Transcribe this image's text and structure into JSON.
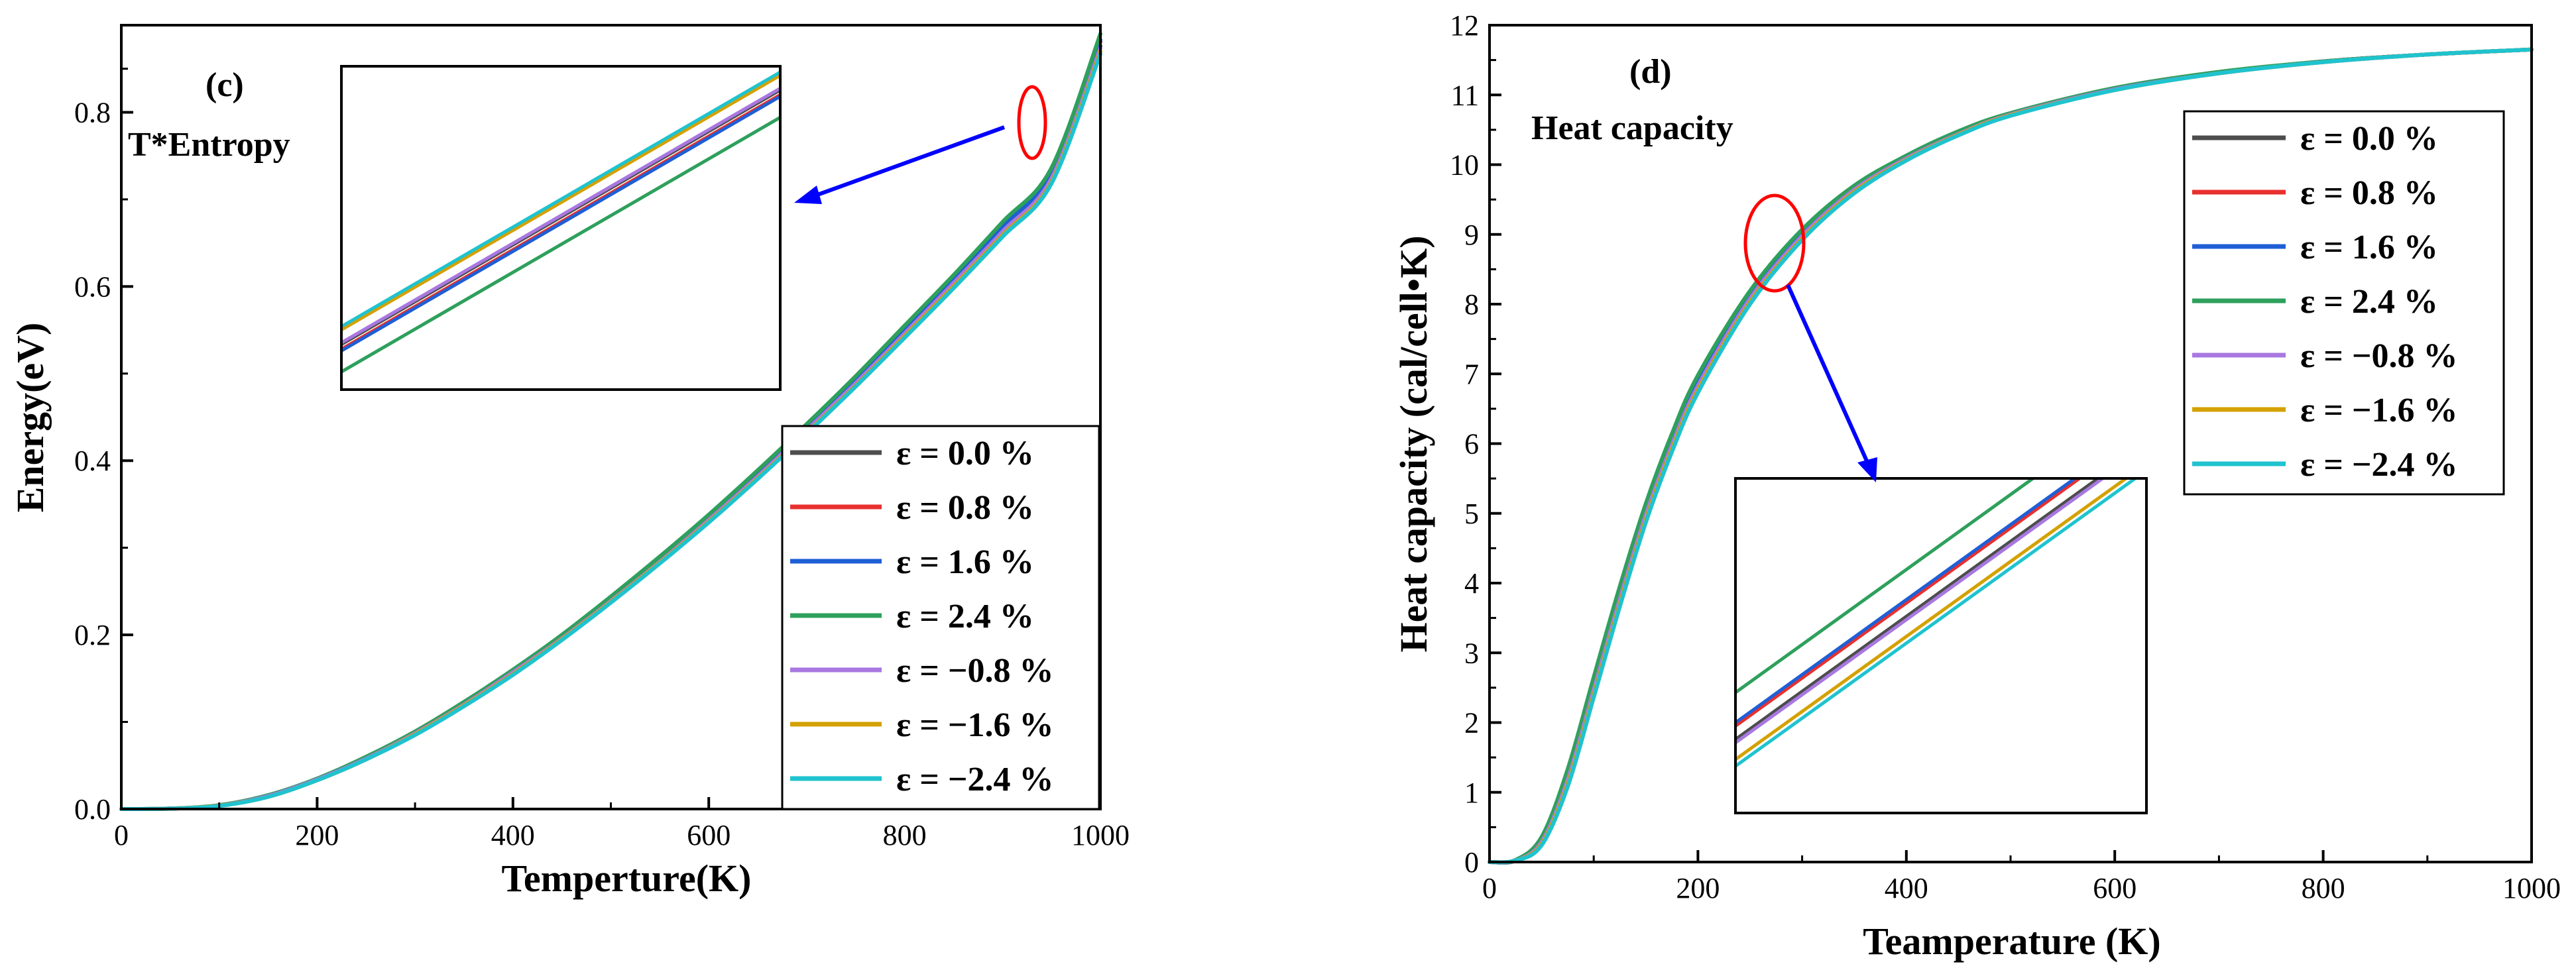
{
  "chart_data": [
    {
      "type": "line",
      "panel_label": "(c)",
      "annotation": "T*Entropy",
      "xlabel": "Temperture(K)",
      "ylabel": "Energy(eV)",
      "xlim": [
        0,
        1000
      ],
      "ylim": [
        0,
        0.9
      ],
      "xticks": [
        0,
        200,
        400,
        600,
        800,
        1000
      ],
      "xtick_labels": [
        "0",
        "200",
        "400",
        "600",
        "800",
        "1000"
      ],
      "yticks": [
        0.0,
        0.2,
        0.4,
        0.6,
        0.8
      ],
      "ytick_labels": [
        "0.0",
        "0.2",
        "0.4",
        "0.6",
        "0.8"
      ],
      "legend_position": "lower-right",
      "x": [
        0,
        50,
        100,
        150,
        200,
        250,
        300,
        350,
        400,
        450,
        500,
        550,
        600,
        650,
        700,
        750,
        800,
        850,
        900,
        950,
        1000
      ],
      "series": [
        {
          "name": "ε = 0.0 %",
          "color": "#4d4d4d",
          "values": [
            0,
            0.0005,
            0.004,
            0.015,
            0.034,
            0.058,
            0.087,
            0.12,
            0.157,
            0.197,
            0.24,
            0.285,
            0.333,
            0.383,
            0.436,
            0.49,
            0.547,
            0.605,
            0.664,
            0.725,
            0.876
          ]
        },
        {
          "name": "ε = 0.8 %",
          "color": "#e8302f",
          "values": [
            0,
            0.0005,
            0.004,
            0.015,
            0.034,
            0.059,
            0.088,
            0.121,
            0.158,
            0.198,
            0.241,
            0.287,
            0.335,
            0.385,
            0.438,
            0.493,
            0.55,
            0.608,
            0.668,
            0.729,
            0.881
          ]
        },
        {
          "name": "ε = 1.6 %",
          "color": "#1f5fd6",
          "values": [
            0,
            0.0005,
            0.004,
            0.015,
            0.034,
            0.059,
            0.088,
            0.121,
            0.158,
            0.198,
            0.242,
            0.287,
            0.335,
            0.386,
            0.439,
            0.494,
            0.551,
            0.609,
            0.669,
            0.73,
            0.883
          ]
        },
        {
          "name": "ε = 2.4 %",
          "color": "#2ea05c",
          "values": [
            0,
            0.0006,
            0.0045,
            0.016,
            0.035,
            0.06,
            0.089,
            0.123,
            0.16,
            0.2,
            0.244,
            0.29,
            0.338,
            0.389,
            0.442,
            0.497,
            0.555,
            0.613,
            0.674,
            0.736,
            0.89
          ]
        },
        {
          "name": "ε = −0.8 %",
          "color": "#a878e0",
          "values": [
            0,
            0.0005,
            0.004,
            0.015,
            0.034,
            0.058,
            0.087,
            0.12,
            0.157,
            0.196,
            0.239,
            0.284,
            0.332,
            0.382,
            0.435,
            0.489,
            0.546,
            0.604,
            0.663,
            0.724,
            0.874
          ]
        },
        {
          "name": "ε = −1.6 %",
          "color": "#d4a100",
          "values": [
            0,
            0.0004,
            0.0038,
            0.014,
            0.033,
            0.057,
            0.086,
            0.119,
            0.155,
            0.195,
            0.238,
            0.283,
            0.33,
            0.38,
            0.432,
            0.486,
            0.543,
            0.6,
            0.659,
            0.72,
            0.87
          ]
        },
        {
          "name": "ε = −2.4 %",
          "color": "#1fc3cf",
          "values": [
            0,
            0.0004,
            0.0036,
            0.014,
            0.033,
            0.057,
            0.085,
            0.118,
            0.154,
            0.194,
            0.237,
            0.282,
            0.329,
            0.379,
            0.431,
            0.485,
            0.541,
            0.598,
            0.657,
            0.718,
            0.867
          ]
        }
      ]
    },
    {
      "type": "line",
      "panel_label": "(d)",
      "annotation": "Heat capacity",
      "xlabel": "Teamperature (K)",
      "ylabel": "Heat capacity (cal/cell•K)",
      "xlim": [
        0,
        1000
      ],
      "ylim": [
        0,
        12
      ],
      "xticks": [
        0,
        200,
        400,
        600,
        800,
        1000
      ],
      "xtick_labels": [
        "0",
        "200",
        "400",
        "600",
        "800",
        "1000"
      ],
      "yticks": [
        0,
        1,
        2,
        3,
        4,
        5,
        6,
        7,
        8,
        9,
        10,
        11,
        12
      ],
      "ytick_labels": [
        "0",
        "1",
        "2",
        "3",
        "4",
        "5",
        "6",
        "7",
        "8",
        "9",
        "10",
        "11",
        "12"
      ],
      "legend_position": "top-right",
      "x": [
        0,
        25,
        50,
        75,
        100,
        125,
        150,
        175,
        200,
        250,
        300,
        350,
        400,
        450,
        500,
        600,
        700,
        800,
        900,
        1000
      ],
      "series": [
        {
          "name": "ε = 0.0 %",
          "color": "#4d4d4d",
          "values": [
            0,
            0.02,
            0.3,
            1.2,
            2.5,
            3.8,
            5.0,
            6.0,
            6.85,
            8.1,
            9.0,
            9.65,
            10.1,
            10.45,
            10.72,
            11.08,
            11.32,
            11.48,
            11.58,
            11.65
          ]
        },
        {
          "name": "ε = 0.8 %",
          "color": "#e8302f",
          "values": [
            0,
            0.02,
            0.32,
            1.25,
            2.55,
            3.85,
            5.05,
            6.05,
            6.9,
            8.13,
            9.02,
            9.66,
            10.11,
            10.46,
            10.73,
            11.09,
            11.32,
            11.48,
            11.58,
            11.65
          ]
        },
        {
          "name": "ε = 1.6 %",
          "color": "#1f5fd6",
          "values": [
            0,
            0.02,
            0.33,
            1.27,
            2.57,
            3.87,
            5.07,
            6.07,
            6.92,
            8.14,
            9.03,
            9.67,
            10.11,
            10.46,
            10.73,
            11.09,
            11.32,
            11.48,
            11.58,
            11.65
          ]
        },
        {
          "name": "ε = 2.4 %",
          "color": "#2ea05c",
          "values": [
            0,
            0.03,
            0.36,
            1.33,
            2.65,
            3.95,
            5.14,
            6.14,
            6.98,
            8.19,
            9.07,
            9.7,
            10.13,
            10.48,
            10.74,
            11.1,
            11.33,
            11.48,
            11.58,
            11.65
          ]
        },
        {
          "name": "ε = −0.8 %",
          "color": "#a878e0",
          "values": [
            0,
            0.02,
            0.29,
            1.18,
            2.47,
            3.77,
            4.98,
            5.98,
            6.83,
            8.08,
            8.98,
            9.64,
            10.09,
            10.44,
            10.72,
            11.08,
            11.31,
            11.47,
            11.58,
            11.65
          ]
        },
        {
          "name": "ε = −1.6 %",
          "color": "#d4a100",
          "values": [
            0,
            0.02,
            0.26,
            1.12,
            2.4,
            3.7,
            4.91,
            5.92,
            6.77,
            8.03,
            8.94,
            9.61,
            10.07,
            10.43,
            10.71,
            11.07,
            11.31,
            11.47,
            11.58,
            11.65
          ]
        },
        {
          "name": "ε = −2.4 %",
          "color": "#1fc3cf",
          "values": [
            0,
            0.02,
            0.24,
            1.08,
            2.36,
            3.66,
            4.87,
            5.88,
            6.73,
            8.0,
            8.92,
            9.59,
            10.06,
            10.42,
            10.7,
            11.07,
            11.31,
            11.47,
            11.58,
            11.65
          ]
        }
      ]
    }
  ]
}
